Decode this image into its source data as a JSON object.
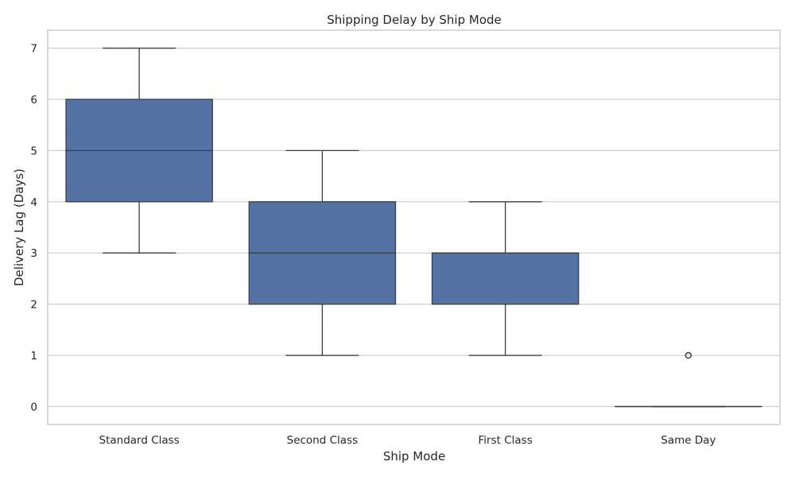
{
  "chart_data": {
    "type": "box",
    "title": "Shipping Delay by Ship Mode",
    "xlabel": "Ship Mode",
    "ylabel": "Delivery Lag (Days)",
    "ylim": [
      -0.35,
      7.35
    ],
    "yticks": [
      0,
      1,
      2,
      3,
      4,
      5,
      6,
      7
    ],
    "grid": true,
    "box_color": "#5572a5",
    "line_color": "#3d3d3d",
    "grid_color": "#cccccc",
    "categories": [
      "Standard Class",
      "Second Class",
      "First Class",
      "Same Day"
    ],
    "boxes": [
      {
        "category": "Standard Class",
        "whisker_low": 3,
        "q1": 4,
        "median": 5,
        "q3": 6,
        "whisker_high": 7,
        "outliers": []
      },
      {
        "category": "Second Class",
        "whisker_low": 1,
        "q1": 2,
        "median": 3,
        "q3": 4,
        "whisker_high": 5,
        "outliers": []
      },
      {
        "category": "First Class",
        "whisker_low": 1,
        "q1": 2,
        "median": 3,
        "q3": 3,
        "whisker_high": 4,
        "outliers": []
      },
      {
        "category": "Same Day",
        "whisker_low": 0,
        "q1": 0,
        "median": 0,
        "q3": 0,
        "whisker_high": 0,
        "outliers": [
          1
        ]
      }
    ]
  }
}
